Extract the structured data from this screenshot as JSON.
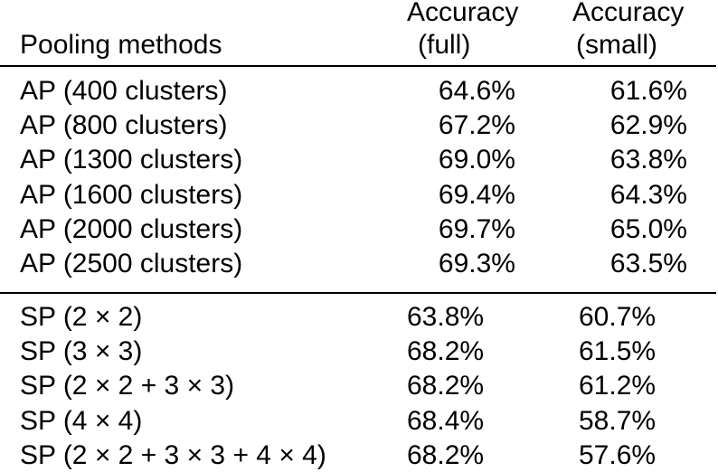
{
  "table": {
    "header": [
      [
        "Pooling methods"
      ],
      [
        "Accuracy",
        "(full)"
      ],
      [
        "Accuracy",
        "(small)"
      ]
    ],
    "groups": [
      {
        "rows": [
          [
            "AP (400 clusters)",
            "64.6%",
            "61.6%"
          ],
          [
            "AP (800 clusters)",
            "67.2%",
            "62.9%"
          ],
          [
            "AP (1300 clusters)",
            "69.0%",
            "63.8%"
          ],
          [
            "AP (1600 clusters)",
            "69.4%",
            "64.3%"
          ],
          [
            "AP (2000 clusters)",
            "69.7%",
            "65.0%"
          ],
          [
            "AP (2500 clusters)",
            "69.3%",
            "63.5%"
          ]
        ]
      },
      {
        "rows": [
          [
            "SP (2 × 2)",
            "63.8%",
            "60.7%"
          ],
          [
            "SP (3 × 3)",
            "68.2%",
            "61.5%"
          ],
          [
            "SP (2 × 2 + 3 × 3)",
            "68.2%",
            "61.2%"
          ],
          [
            "SP (4 × 4)",
            "68.4%",
            "58.7%"
          ],
          [
            "SP (2 × 2 + 3 × 3 + 4 × 4)",
            "68.2%",
            "57.6%"
          ]
        ]
      }
    ]
  }
}
